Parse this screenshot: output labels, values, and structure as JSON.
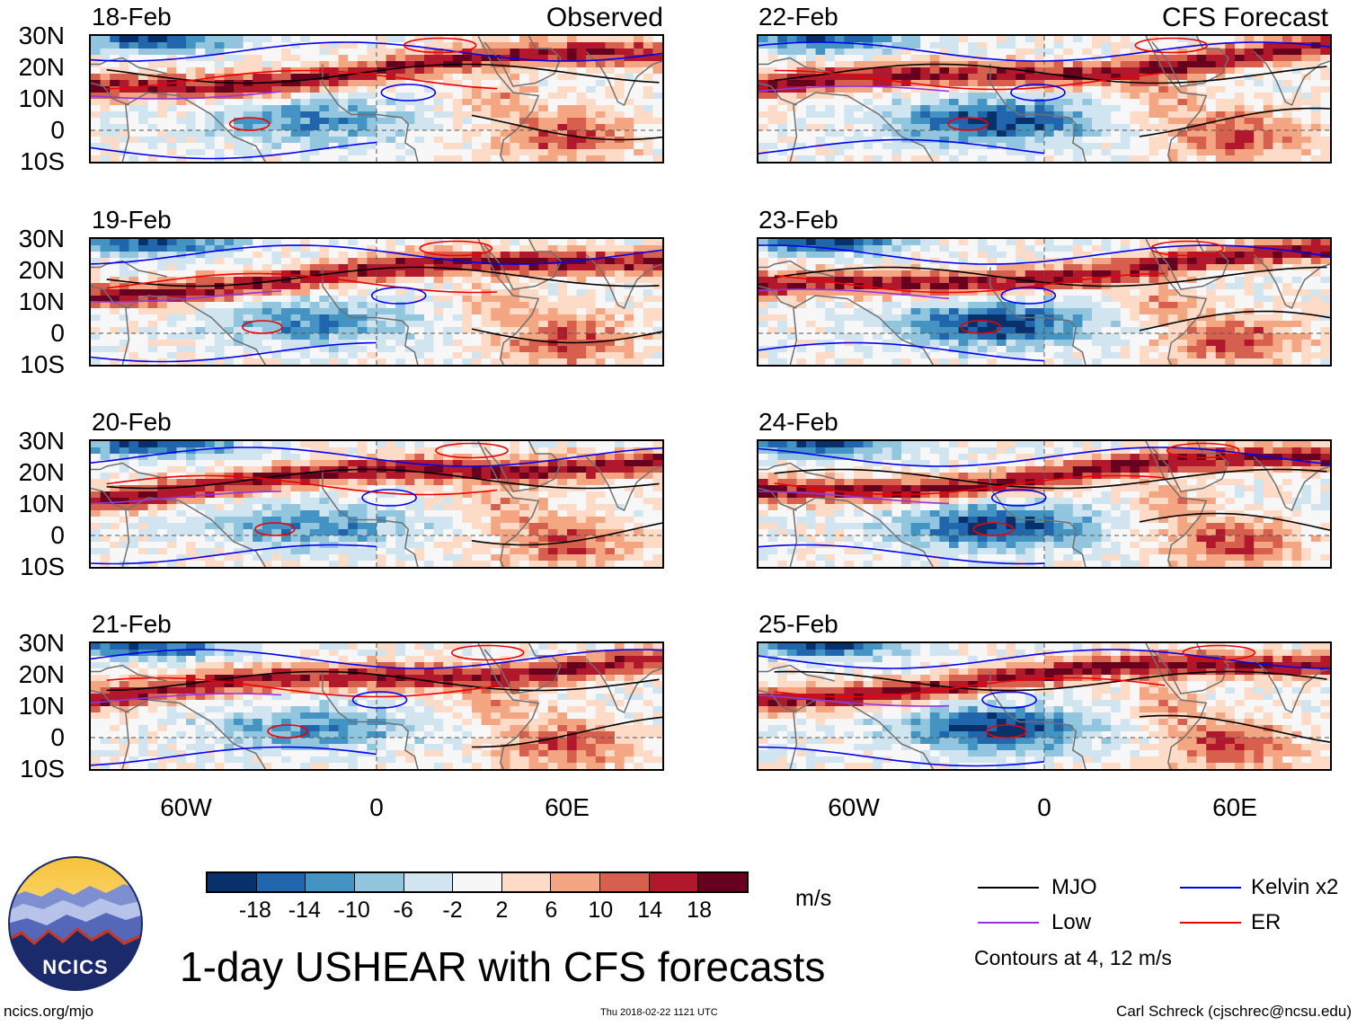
{
  "title": "1-day USHEAR with CFS forecasts",
  "observed_label": "Observed",
  "forecast_label": "CFS Forecast",
  "panels": [
    {
      "date": "18-Feb",
      "kind": "observed"
    },
    {
      "date": "19-Feb",
      "kind": "observed"
    },
    {
      "date": "20-Feb",
      "kind": "observed"
    },
    {
      "date": "21-Feb",
      "kind": "observed"
    },
    {
      "date": "22-Feb",
      "kind": "forecast"
    },
    {
      "date": "23-Feb",
      "kind": "forecast"
    },
    {
      "date": "24-Feb",
      "kind": "forecast"
    },
    {
      "date": "25-Feb",
      "kind": "forecast"
    }
  ],
  "lat_ticks": [
    "30N",
    "20N",
    "10N",
    "0",
    "10S"
  ],
  "lon_ticks": [
    "60W",
    "0",
    "60E"
  ],
  "map": {
    "lon_range": [
      -90,
      90
    ],
    "lat_range": [
      -10,
      30
    ]
  },
  "colorbar": {
    "unit": "m/s",
    "labels": [
      "-18",
      "-14",
      "-10",
      "-6",
      "-2",
      "2",
      "6",
      "10",
      "14",
      "18"
    ],
    "colors": [
      "#08306b",
      "#2166ac",
      "#4393c3",
      "#92c5de",
      "#d1e5f0",
      "#f7f7f7",
      "#fddbc7",
      "#f4a582",
      "#d6604d",
      "#b2182b",
      "#67001f"
    ]
  },
  "legend": {
    "items": [
      {
        "name": "MJO",
        "color": "#000000"
      },
      {
        "name": "Kelvin x2",
        "color": "#0000ee"
      },
      {
        "name": "Low",
        "color": "#9933dd"
      },
      {
        "name": "ER",
        "color": "#ee0000"
      }
    ],
    "note": "Contours at 4, 12 m/s"
  },
  "logo_text": "NCICS",
  "footer": {
    "website": "ncics.org/mjo",
    "timestamp": "Thu 2018-02-22 1121 UTC",
    "author": "Carl Schreck (cjschrec@ncsu.edu)"
  }
}
